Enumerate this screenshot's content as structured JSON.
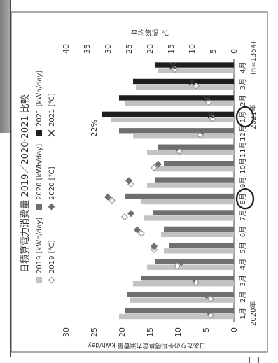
{
  "chart_data": {
    "type": "bar",
    "title": "日積算電力消費量 2019／2020·2021 比較",
    "ylabel_left": "一日あたりの平均積算電力消費量 kWh/day",
    "ylabel_right": "平均気温 ℃",
    "sample_note": "(n=1354)",
    "annotation": "22%",
    "year_labels": [
      {
        "text": "2020年",
        "at_category": 0
      },
      {
        "text": "2021年",
        "at_category": 12
      }
    ],
    "ylim_left": [
      0,
      30
    ],
    "ylim_right": [
      0,
      40
    ],
    "ticks_left": [
      0,
      5,
      10,
      15,
      20,
      25,
      30
    ],
    "ticks_right": [
      0,
      5,
      10,
      15,
      20,
      25,
      30,
      35,
      40
    ],
    "categories": [
      "1月",
      "2月",
      "3月",
      "4月",
      "5月",
      "6月",
      "7月",
      "8月",
      "9月",
      "10月",
      "11月",
      "12月",
      "1月",
      "2月",
      "3月",
      "4月"
    ],
    "series": [
      {
        "name": "2019 [kWh/day]",
        "kind": "bar",
        "axis": "left",
        "color": "#c2c2c2",
        "values": [
          20.5,
          18.5,
          18.0,
          15.5,
          12.5,
          13.0,
          16.0,
          16.5,
          15.5,
          14.0,
          15.5,
          18.0,
          22.0,
          19.5,
          17.5,
          13.5
        ]
      },
      {
        "name": "2020 [kWh/day]",
        "kind": "bar",
        "axis": "left",
        "color": "#6f6f6f",
        "values": [
          19.5,
          19.0,
          16.5,
          14.0,
          11.5,
          12.5,
          14.5,
          19.5,
          14.0,
          12.5,
          13.5,
          20.5,
          null,
          null,
          null,
          null
        ]
      },
      {
        "name": "2021 [kWh/day]",
        "kind": "bar",
        "axis": "left",
        "color": "#1e1e1e",
        "values": [
          null,
          null,
          null,
          null,
          null,
          null,
          null,
          null,
          null,
          null,
          null,
          null,
          23.5,
          20.5,
          18.0,
          14.0
        ]
      },
      {
        "name": "2019 [℃]",
        "kind": "marker",
        "marker": "diamond-open",
        "axis": "right",
        "color": "#9a9a9a",
        "values": [
          5.5,
          5.5,
          9.0,
          13.5,
          19.0,
          22.0,
          26.0,
          29.0,
          24.5,
          19.0,
          13.0,
          8.0,
          5.0,
          6.0,
          9.0,
          14.0
        ]
      },
      {
        "name": "2020 [℃]",
        "kind": "marker",
        "marker": "diamond",
        "axis": "right",
        "color": "#6f6f6f",
        "values": [
          6.0,
          6.5,
          9.5,
          12.5,
          19.0,
          23.0,
          24.5,
          30.0,
          25.0,
          18.0,
          13.5,
          7.5,
          null,
          null,
          null,
          null
        ]
      },
      {
        "name": "2021 [℃]",
        "kind": "marker",
        "marker": "x",
        "axis": "right",
        "color": "#3a3a3a",
        "values": [
          null,
          null,
          null,
          null,
          null,
          null,
          null,
          null,
          null,
          null,
          null,
          null,
          5.5,
          6.5,
          10.0,
          14.5
        ]
      }
    ],
    "highlighted_categories": [
      7,
      12
    ],
    "legend": {
      "placement": "top",
      "items": [
        "2019 [kWh/day]",
        "2020 [kWh/day]",
        "2021 [kWh/day]",
        "2019 [℃]",
        "2020 [℃]",
        "2021 [℃]"
      ]
    },
    "grid": false
  }
}
